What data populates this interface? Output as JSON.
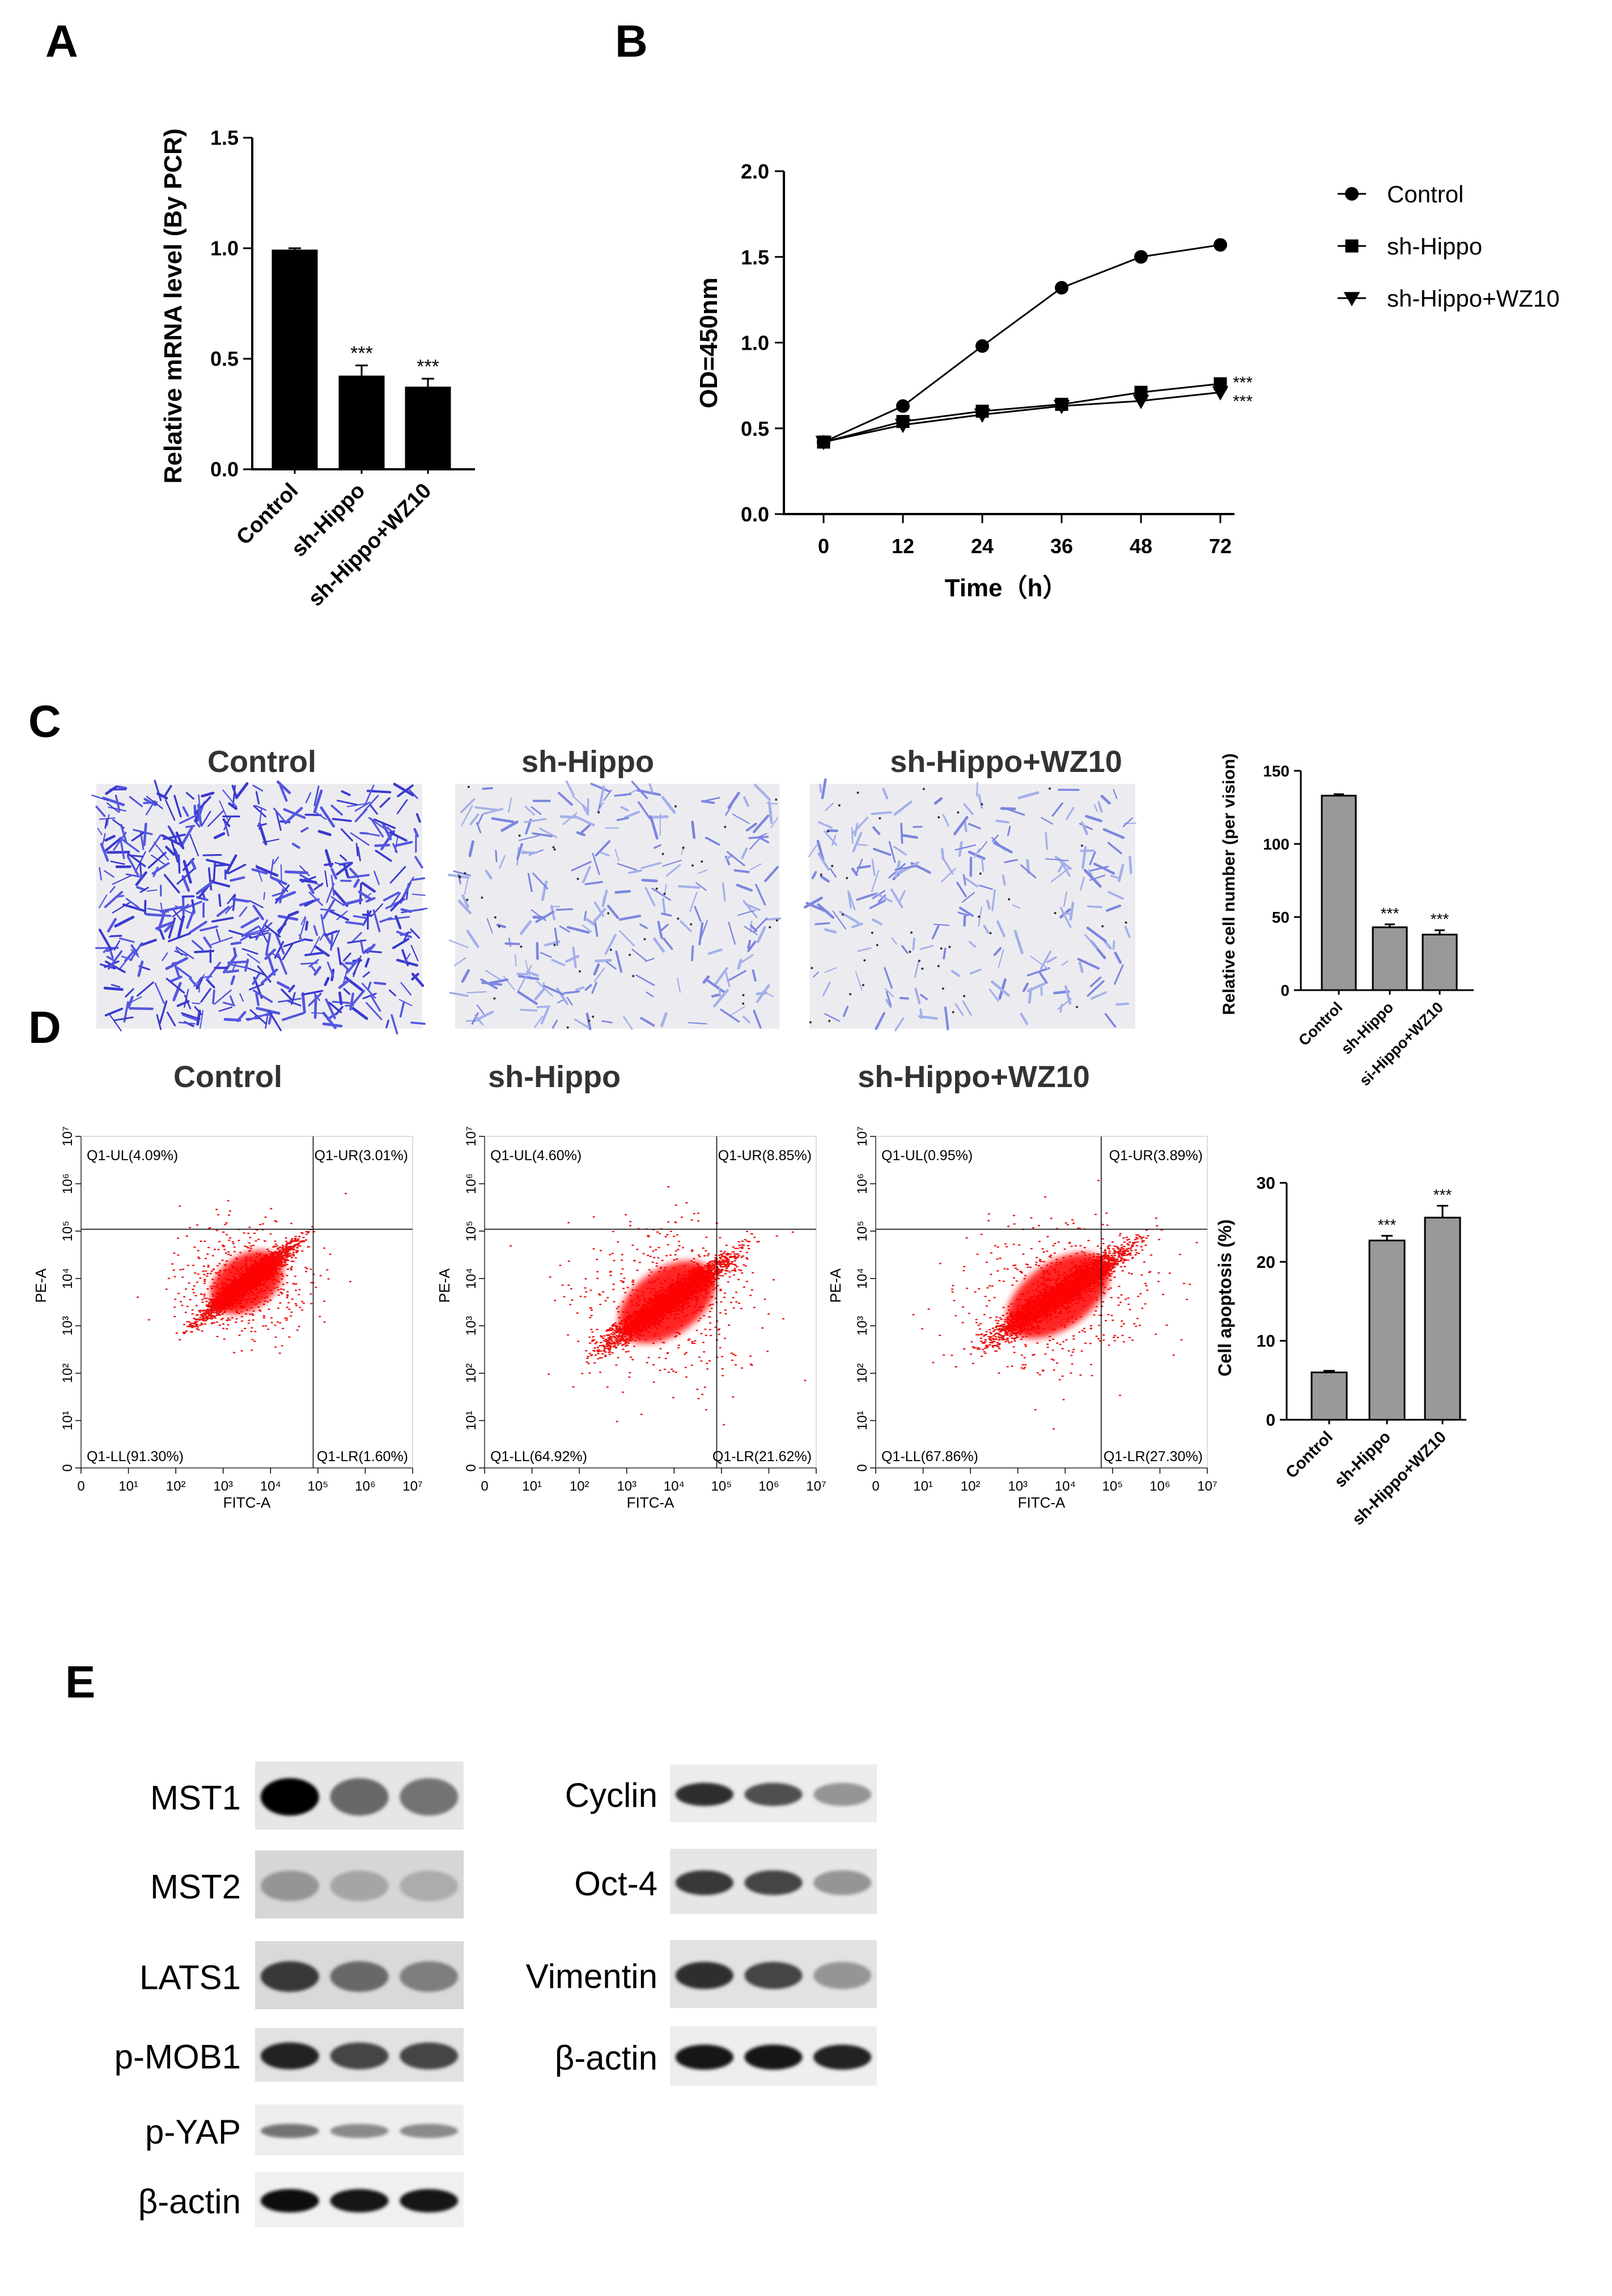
{
  "panels": {
    "A": {
      "letter": "A",
      "ylabel": "Relative mRNA level (By PCR)",
      "yticks": [
        "0.0",
        "0.5",
        "1.0",
        "1.5"
      ],
      "categories": [
        "Control",
        "sh-Hippo",
        "sh-Hippo+WZ10"
      ],
      "sig": [
        "",
        "***",
        "***"
      ]
    },
    "B": {
      "letter": "B",
      "ylabel": "OD=450nm",
      "xlabel": "Time（h）",
      "yticks": [
        "0.0",
        "0.5",
        "1.0",
        "1.5",
        "2.0"
      ],
      "xticks": [
        "0",
        "12",
        "24",
        "36",
        "48",
        "72"
      ],
      "legend": [
        "Control",
        "sh-Hippo",
        "sh-Hippo+WZ10"
      ],
      "sig": [
        "***",
        "***"
      ]
    },
    "C": {
      "letter": "C",
      "image_titles": [
        "Control",
        "sh-Hippo",
        "sh-Hippo+WZ10"
      ],
      "ylabel": "Relative cell number (per vision)",
      "yticks": [
        "0",
        "50",
        "100",
        "150"
      ],
      "categories": [
        "Control",
        "sh-Hippo",
        "si-Hippo+WZ10"
      ],
      "sig": [
        "",
        "***",
        "***"
      ]
    },
    "D": {
      "letter": "D",
      "plot_titles": [
        "Control",
        "sh-Hippo",
        "sh-Hippo+WZ10"
      ],
      "flow": [
        {
          "ul": "Q1-UL(4.09%)",
          "ur": "Q1-UR(3.01%)",
          "ll": "Q1-LL(91.30%)",
          "lr": "Q1-LR(1.60%)"
        },
        {
          "ul": "Q1-UL(4.60%)",
          "ur": "Q1-UR(8.85%)",
          "ll": "Q1-LL(64.92%)",
          "lr": "Q1-LR(21.62%)"
        },
        {
          "ul": "Q1-UL(0.95%)",
          "ur": "Q1-UR(3.89%)",
          "ll": "Q1-LL(67.86%)",
          "lr": "Q1-LR(27.30%)"
        }
      ],
      "flow_xlabel": "FITC-A",
      "flow_ylabel": "PE-A",
      "ylabel": "Cell apoptosis (%)",
      "yticks": [
        "0",
        "10",
        "20",
        "30"
      ],
      "categories": [
        "Control",
        "sh-Hippo",
        "sh-Hippo+WZ10"
      ],
      "sig": [
        "",
        "***",
        "***"
      ]
    },
    "E": {
      "letter": "E",
      "left_labels": [
        "MST1",
        "MST2",
        "LATS1",
        "p-MOB1",
        "p-YAP",
        "β-actin"
      ],
      "right_labels": [
        "Cyclin",
        "Oct-4",
        "Vimentin",
        "β-actin"
      ]
    }
  },
  "chart_data": [
    {
      "type": "bar",
      "panel": "A",
      "categories": [
        "Control",
        "sh-Hippo",
        "sh-Hippo+WZ10"
      ],
      "values": [
        0.99,
        0.42,
        0.37
      ],
      "errors": [
        0.01,
        0.05,
        0.04
      ],
      "ylabel": "Relative mRNA level (By PCR)",
      "ylim": [
        0,
        1.5
      ],
      "bar_color": "#000000"
    },
    {
      "type": "line",
      "panel": "B",
      "x": [
        0,
        12,
        24,
        36,
        48,
        72
      ],
      "series": [
        {
          "name": "Control",
          "marker": "circle",
          "values": [
            0.42,
            0.63,
            0.98,
            1.32,
            1.5,
            1.57
          ]
        },
        {
          "name": "sh-Hippo",
          "marker": "square",
          "values": [
            0.42,
            0.54,
            0.6,
            0.64,
            0.71,
            0.76
          ]
        },
        {
          "name": "sh-Hippo+WZ10",
          "marker": "triangle-down",
          "values": [
            0.42,
            0.52,
            0.58,
            0.63,
            0.66,
            0.71
          ]
        }
      ],
      "xlabel": "Time（h）",
      "ylabel": "OD=450nm",
      "ylim": [
        0,
        2.0
      ],
      "legend": "right"
    },
    {
      "type": "bar",
      "panel": "C",
      "categories": [
        "Control",
        "sh-Hippo",
        "si-Hippo+WZ10"
      ],
      "values": [
        133,
        43,
        38
      ],
      "errors": [
        1,
        2,
        3
      ],
      "ylabel": "Relative cell number (per vision)",
      "ylim": [
        0,
        150
      ],
      "bar_color": "#999999"
    },
    {
      "type": "bar",
      "panel": "D",
      "categories": [
        "Control",
        "sh-Hippo",
        "sh-Hippo+WZ10"
      ],
      "values": [
        6,
        22.7,
        25.6
      ],
      "errors": [
        0.2,
        0.6,
        1.5
      ],
      "ylabel": "Cell apoptosis (%)",
      "ylim": [
        0,
        30
      ],
      "bar_color": "#999999"
    }
  ]
}
